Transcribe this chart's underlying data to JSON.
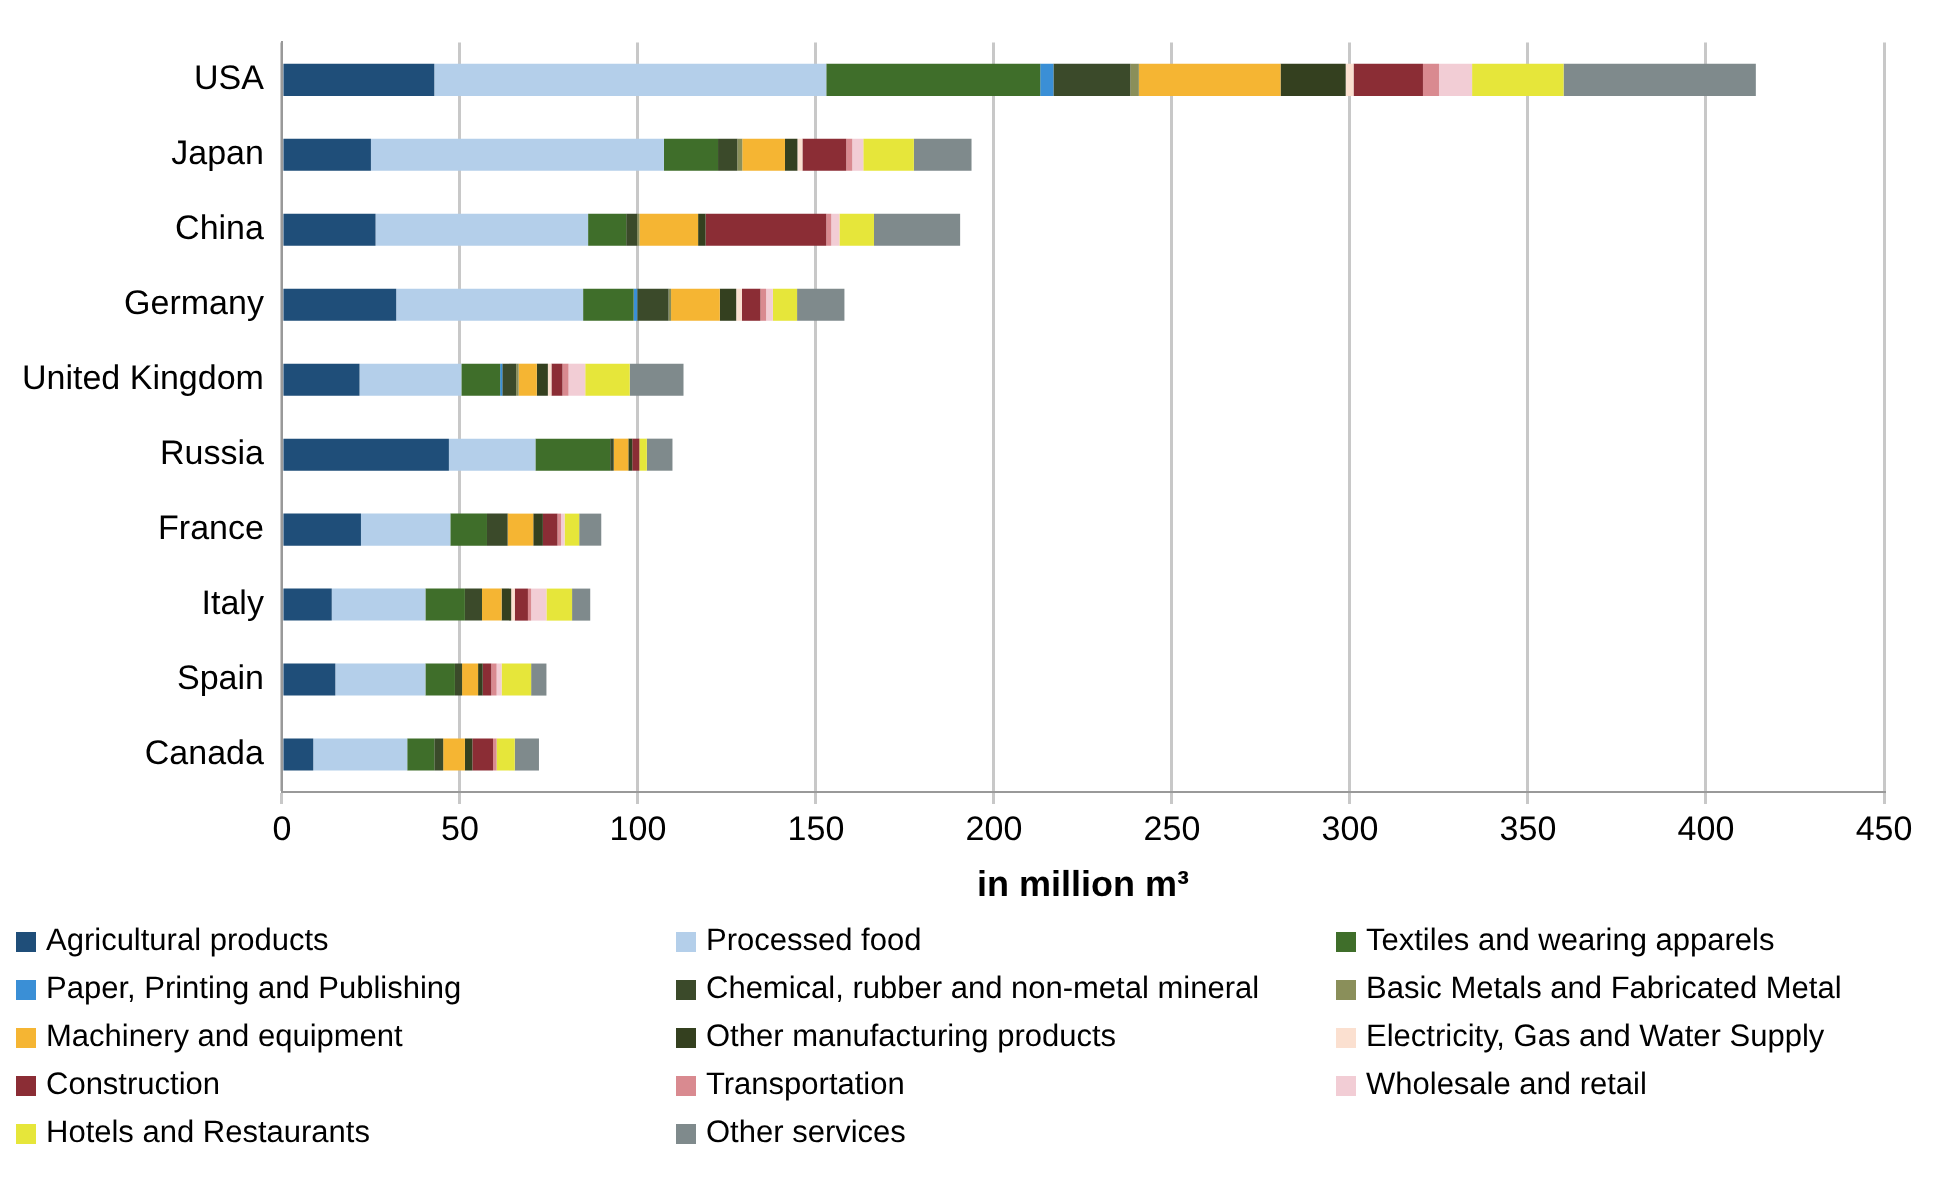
{
  "chart_data": {
    "type": "bar",
    "orientation": "horizontal",
    "stacked": true,
    "xlabel": "in million m³",
    "categories": [
      "USA",
      "Japan",
      "China",
      "Germany",
      "United Kingdom",
      "Russia",
      "France",
      "Italy",
      "Spain",
      "Canada"
    ],
    "xlim": [
      0,
      450
    ],
    "xticks": [
      0,
      50,
      100,
      150,
      200,
      250,
      300,
      350,
      400,
      450
    ],
    "grid": "x",
    "legend": "bottom",
    "series": [
      {
        "name": "Agricultural products",
        "color": "#1f4e79",
        "values": [
          42.8,
          25,
          26.3,
          32.1,
          21.8,
          46.9,
          22.2,
          14,
          15,
          8.8
        ]
      },
      {
        "name": "Processed food",
        "color": "#b4cfea",
        "values": [
          110.1,
          82.3,
          59.7,
          52.5,
          28.6,
          24.3,
          25.1,
          26.3,
          25.3,
          26.4
        ]
      },
      {
        "name": "Textiles and wearing apparels",
        "color": "#3f6e2a",
        "values": [
          60.1,
          15.2,
          10.7,
          14.2,
          10.9,
          21,
          10.3,
          11.1,
          8.3,
          7.6
        ]
      },
      {
        "name": "Paper, Printing and Publishing",
        "color": "#3a8fd6",
        "values": [
          3.7,
          0,
          0,
          1,
          0.6,
          0,
          0,
          0,
          0,
          0
        ]
      },
      {
        "name": "Chemical, rubber and non-metal mineral",
        "color": "#3b4a2a",
        "values": [
          21.6,
          5.4,
          3.1,
          8.8,
          3.9,
          1,
          5.8,
          4.8,
          2,
          2.5
        ]
      },
      {
        "name": "Basic Metals and Fabricated Metal",
        "color": "#8a8f5a",
        "values": [
          2.4,
          1.4,
          0.6,
          0.7,
          0.7,
          0,
          0,
          0,
          0,
          0
        ]
      },
      {
        "name": "Machinery and equipment",
        "color": "#f5b533",
        "values": [
          39.8,
          12,
          16.5,
          13.7,
          5.1,
          4.1,
          7.2,
          5.5,
          4.5,
          6.1
        ]
      },
      {
        "name": "Other manufacturing products",
        "color": "#34401f",
        "values": [
          18.3,
          3.5,
          2.1,
          4.6,
          3.1,
          1.1,
          2.7,
          2.7,
          1.3,
          2.1
        ]
      },
      {
        "name": "Electricity, Gas and Water Supply",
        "color": "#fbe0d0",
        "values": [
          2.2,
          1.4,
          0,
          1.6,
          1,
          0,
          0,
          1,
          0,
          0
        ]
      },
      {
        "name": "Construction",
        "color": "#8b2d35",
        "values": [
          19.5,
          12.3,
          33.9,
          5.2,
          3.1,
          2,
          4.1,
          3.7,
          2.4,
          5.8
        ]
      },
      {
        "name": "Transportation",
        "color": "#d98a90",
        "values": [
          4.5,
          1.7,
          1.4,
          1.6,
          1.7,
          0,
          1,
          0.9,
          1.5,
          1
        ]
      },
      {
        "name": "Wholesale and retail",
        "color": "#f2cdd5",
        "values": [
          9.3,
          3.1,
          2.3,
          1.9,
          4.7,
          0,
          1,
          4.3,
          1.4,
          0
        ]
      },
      {
        "name": "Hotels and Restaurants",
        "color": "#e6e63a",
        "values": [
          25.7,
          14.2,
          9.7,
          6.8,
          12.5,
          2.1,
          4.1,
          7.2,
          8.3,
          5.1
        ]
      },
      {
        "name": "Other services",
        "color": "#7f8a8c",
        "values": [
          54,
          16.2,
          24.2,
          13.3,
          15.1,
          7.2,
          6.2,
          5.1,
          4.3,
          6.8
        ]
      }
    ]
  }
}
